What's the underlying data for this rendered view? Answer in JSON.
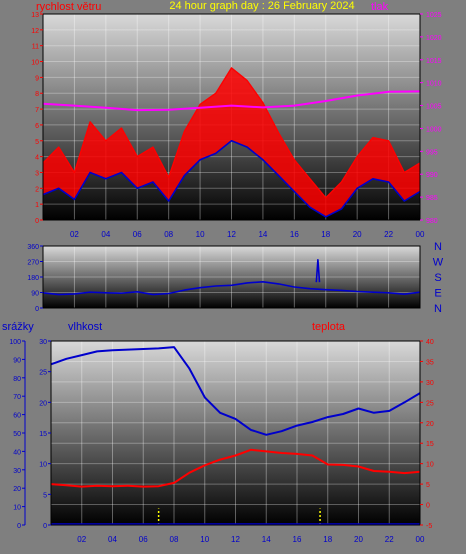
{
  "title": "24 hour graph day : 26 February 2024",
  "colors": {
    "frame": "#7f7f7f",
    "plot_top": "#d9d9d9",
    "plot_bottom": "#000000",
    "wind": "#ff0000",
    "gust_base": "#0000cc",
    "pressure": "#ff00ff",
    "direction": "#0000cc",
    "humidity": "#0000cc",
    "temperature": "#ff0000",
    "rain": "#ffff00",
    "title": "#ffff00",
    "axis_blue": "#0000cc",
    "axis_red": "#ff0000",
    "axis_magenta": "#ff00ff"
  },
  "chart_data": [
    {
      "type": "line",
      "panel": "top",
      "labels": {
        "left": "rychlost větru",
        "right": "tlak"
      },
      "x_ticks": [
        "02",
        "04",
        "06",
        "08",
        "10",
        "12",
        "14",
        "16",
        "18",
        "20",
        "22",
        "00"
      ],
      "ylim_left": [
        0,
        13
      ],
      "ylim_right": [
        980,
        1025
      ],
      "y_ticks_left": [
        "0",
        "1",
        "2",
        "3",
        "4",
        "5",
        "6",
        "7",
        "8",
        "9",
        "10",
        "11",
        "12",
        "13"
      ],
      "y_ticks_right": [
        "980",
        "985",
        "990",
        "995",
        "1000",
        "1005",
        "1010",
        "1015",
        "1020",
        "1025"
      ],
      "series": [
        {
          "key": "wind_max",
          "x": [
            0,
            1,
            2,
            3,
            4,
            5,
            6,
            7,
            8,
            9,
            10,
            11,
            12,
            13,
            14,
            15,
            16,
            17,
            18,
            19,
            20,
            21,
            22,
            23,
            24
          ],
          "values": [
            3.6,
            4.6,
            3.0,
            6.2,
            5.0,
            5.8,
            4.0,
            4.6,
            2.7,
            5.6,
            7.3,
            8.0,
            9.6,
            8.8,
            7.4,
            5.5,
            3.8,
            2.6,
            1.4,
            2.4,
            4.0,
            5.2,
            5.0,
            3.0,
            3.6
          ]
        },
        {
          "key": "wind_min",
          "x": [
            0,
            1,
            2,
            3,
            4,
            5,
            6,
            7,
            8,
            9,
            10,
            11,
            12,
            13,
            14,
            15,
            16,
            17,
            18,
            19,
            20,
            21,
            22,
            23,
            24
          ],
          "values": [
            1.6,
            2.0,
            1.3,
            3.0,
            2.6,
            3.0,
            2.0,
            2.4,
            1.2,
            2.8,
            3.8,
            4.2,
            5.0,
            4.6,
            3.8,
            2.8,
            1.8,
            0.8,
            0.2,
            0.7,
            2.0,
            2.6,
            2.4,
            1.2,
            1.8
          ]
        },
        {
          "key": "pressure",
          "axis": "right",
          "x": [
            0,
            2,
            4,
            6,
            8,
            10,
            12,
            14,
            16,
            18,
            20,
            22,
            24
          ],
          "values": [
            1005.4,
            1005.0,
            1004.5,
            1004.0,
            1004.1,
            1004.5,
            1005.0,
            1004.6,
            1005.0,
            1006.0,
            1007.2,
            1008.0,
            1008.1
          ]
        }
      ]
    },
    {
      "type": "line",
      "panel": "middle",
      "labels": {
        "right": [
          "N",
          "W",
          "S",
          "E",
          "N"
        ]
      },
      "x_ticks": [
        "02",
        "04",
        "06",
        "08",
        "10",
        "12",
        "14",
        "16",
        "18",
        "20",
        "22",
        "00"
      ],
      "ylim_left": [
        0,
        360
      ],
      "y_ticks_left": [
        "0",
        "90",
        "180",
        "270",
        "360"
      ],
      "series": [
        {
          "key": "wind_direction",
          "x": [
            0,
            1,
            2,
            3,
            4,
            5,
            6,
            7,
            8,
            9,
            10,
            11,
            12,
            13,
            14,
            15,
            16,
            17,
            18,
            19,
            20,
            21,
            22,
            23,
            24
          ],
          "values": [
            88,
            78,
            82,
            92,
            88,
            86,
            94,
            78,
            84,
            104,
            118,
            128,
            132,
            146,
            152,
            140,
            122,
            112,
            106,
            102,
            96,
            92,
            88,
            80,
            92
          ]
        },
        {
          "key": "direction_spike",
          "x": [
            17.4,
            17.5,
            17.6
          ],
          "values": [
            150,
            280,
            150
          ]
        }
      ]
    },
    {
      "type": "line",
      "panel": "bottom",
      "labels": {
        "rain": "srážky",
        "humidity": "vlhkost",
        "temperature": "teplota"
      },
      "x_ticks": [
        "02",
        "04",
        "06",
        "08",
        "10",
        "12",
        "14",
        "16",
        "18",
        "20",
        "22",
        "00"
      ],
      "ylim_rain": [
        0,
        100
      ],
      "ylim_humidity": [
        0,
        30
      ],
      "ylim_temperature": [
        -5,
        40
      ],
      "y_ticks_rain": [
        "0",
        "10",
        "20",
        "30",
        "40",
        "50",
        "60",
        "70",
        "80",
        "90",
        "100"
      ],
      "y_ticks_humidity": [
        "0",
        "5",
        "10",
        "15",
        "20",
        "25",
        "30"
      ],
      "y_ticks_temperature": [
        "-5",
        "0",
        "5",
        "10",
        "15",
        "20",
        "25",
        "30",
        "35",
        "40"
      ],
      "series": [
        {
          "key": "humidity",
          "x": [
            0,
            1,
            2,
            3,
            4,
            5,
            6,
            7,
            8,
            9,
            10,
            11,
            12,
            13,
            14,
            15,
            16,
            17,
            18,
            19,
            20,
            21,
            22,
            23,
            24
          ],
          "values": [
            26.2,
            27.1,
            27.7,
            28.3,
            28.5,
            28.6,
            28.7,
            28.8,
            29.0,
            25.5,
            20.8,
            18.3,
            17.3,
            15.5,
            14.7,
            15.3,
            16.2,
            16.8,
            17.6,
            18.1,
            19.0,
            18.3,
            18.6,
            20.0,
            21.5
          ]
        },
        {
          "key": "temperature",
          "x": [
            0,
            1,
            2,
            3,
            4,
            5,
            6,
            7,
            8,
            9,
            10,
            11,
            12,
            13,
            14,
            15,
            16,
            17,
            18,
            19,
            20,
            21,
            22,
            23,
            24
          ],
          "values": [
            5.0,
            4.7,
            4.4,
            4.6,
            4.5,
            4.6,
            4.4,
            4.5,
            5.3,
            7.8,
            9.6,
            11.0,
            12.0,
            13.4,
            13.0,
            12.6,
            12.4,
            12.0,
            9.8,
            9.7,
            9.3,
            8.2,
            8.0,
            7.7,
            8.0
          ]
        },
        {
          "key": "rain",
          "x": [
            7.0,
            17.5
          ],
          "values": [
            9,
            9
          ]
        }
      ]
    }
  ]
}
